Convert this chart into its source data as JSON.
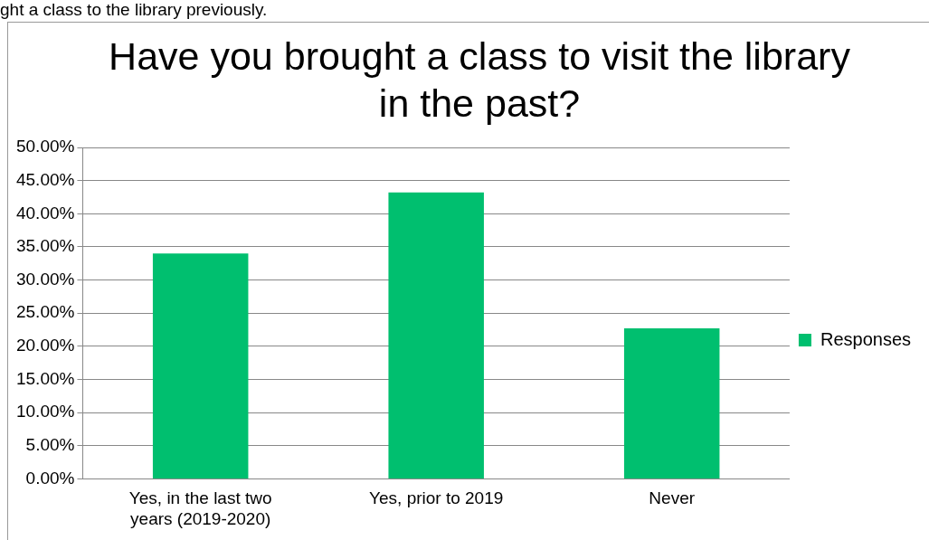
{
  "chart_data": {
    "type": "bar",
    "title": "Have you brought a class to visit the library in the past?",
    "annotations": [
      "ght a class to the library previously."
    ],
    "categories": [
      "Yes, in the last two years (2019-2020)",
      "Yes, prior to 2019",
      "Never"
    ],
    "series": [
      {
        "name": "Responses",
        "color": "#00bf6f",
        "values": [
          34.0,
          43.2,
          22.7
        ]
      }
    ],
    "ylim": [
      0,
      50
    ],
    "yticks": [
      {
        "value": 0,
        "label": "0.00%"
      },
      {
        "value": 5,
        "label": "5.00%"
      },
      {
        "value": 10,
        "label": "10.00%"
      },
      {
        "value": 15,
        "label": "15.00%"
      },
      {
        "value": 20,
        "label": "20.00%"
      },
      {
        "value": 25,
        "label": "25.00%"
      },
      {
        "value": 30,
        "label": "30.00%"
      },
      {
        "value": 35,
        "label": "35.00%"
      },
      {
        "value": 40,
        "label": "40.00%"
      },
      {
        "value": 45,
        "label": "45.00%"
      },
      {
        "value": 50,
        "label": "50.00%"
      }
    ],
    "grid": "y",
    "legend": "right"
  }
}
